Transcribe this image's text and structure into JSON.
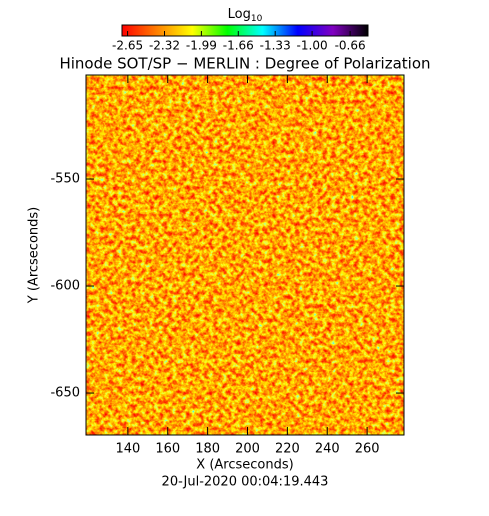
{
  "chart_data": {
    "type": "image",
    "title": "Hinode SOT/SP − MERLIN : Degree of Polarization",
    "x_label": "X (Arcseconds)",
    "y_label": "Y (Arcseconds)",
    "footer": "20-Jul-2020 00:04:19.443",
    "colorbar_label": "Log",
    "colorbar_label_subscript": "10",
    "colormap": [
      "#ff0000",
      "#ff8000",
      "#ffff00",
      "#00ff00",
      "#00ffff",
      "#0000ff",
      "#8000c0",
      "#000000"
    ],
    "clim": [
      -2.7,
      -0.5
    ],
    "cticks": [
      -2.65,
      -2.32,
      -1.99,
      -1.66,
      -1.33,
      {
        "value": -1,
        "label": "-1.00"
      },
      -0.66
    ],
    "xlim": [
      119,
      278.5
    ],
    "xticks": [
      140,
      160,
      180,
      200,
      220,
      240,
      260
    ],
    "ylim": [
      -669.6,
      -501.4
    ],
    "yticks": [
      -550,
      -600,
      -650
    ]
  }
}
